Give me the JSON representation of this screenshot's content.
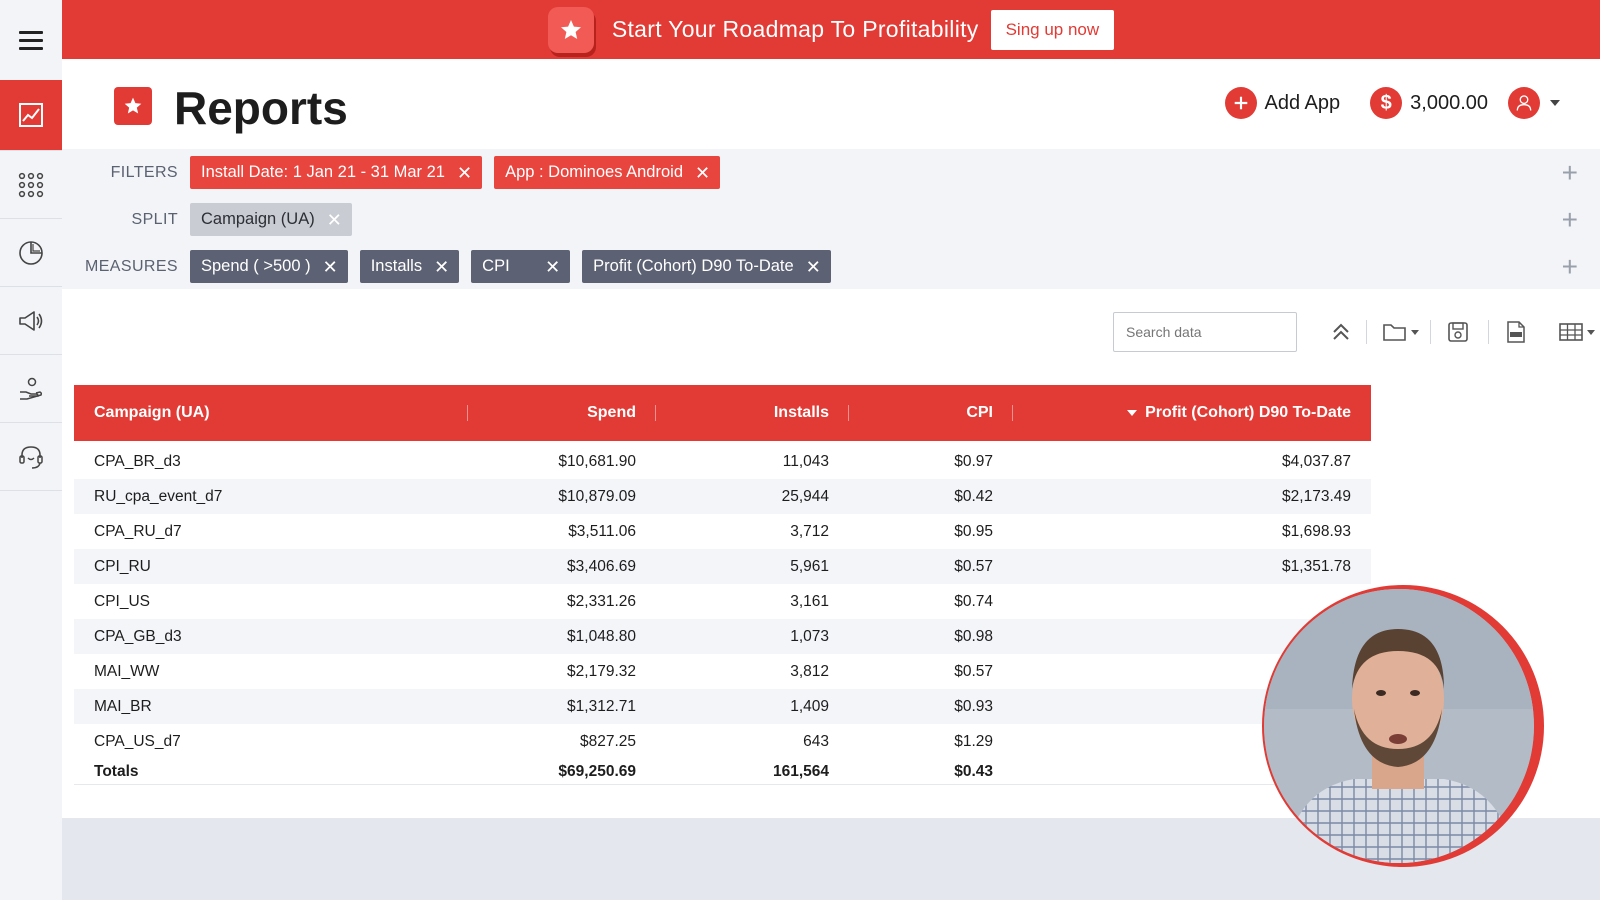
{
  "banner": {
    "title": "Start Your Roadmap To Profitability",
    "cta": "Sing up now"
  },
  "header": {
    "title": "Reports",
    "add_app": "Add App",
    "balance": "3,000.00"
  },
  "filters": {
    "labels": {
      "filters": "FILTERS",
      "split": "SPLIT",
      "measures": "MEASURES"
    },
    "filter_chips": [
      "Install Date: 1 Jan 21 - 31 Mar 21",
      "App : Dominoes Android"
    ],
    "split_chips": [
      "Campaign (UA)"
    ],
    "measure_chips": [
      "Spend ( >500 )",
      "Installs",
      "CPI",
      "Profit (Cohort) D90 To-Date"
    ]
  },
  "toolbar": {
    "search_placeholder": "Search data"
  },
  "table": {
    "columns": [
      "Campaign (UA)",
      "Spend",
      "Installs",
      "CPI",
      "Profit (Cohort) D90 To-Date"
    ],
    "rows": [
      [
        "CPA_BR_d3",
        "$10,681.90",
        "11,043",
        "$0.97",
        "$4,037.87"
      ],
      [
        "RU_cpa_event_d7",
        "$10,879.09",
        "25,944",
        "$0.42",
        "$2,173.49"
      ],
      [
        "CPA_RU_d7",
        "$3,511.06",
        "3,712",
        "$0.95",
        "$1,698.93"
      ],
      [
        "CPI_RU",
        "$3,406.69",
        "5,961",
        "$0.57",
        "$1,351.78"
      ],
      [
        "CPI_US",
        "$2,331.26",
        "3,161",
        "$0.74",
        ""
      ],
      [
        "CPA_GB_d3",
        "$1,048.80",
        "1,073",
        "$0.98",
        ""
      ],
      [
        "MAI_WW",
        "$2,179.32",
        "3,812",
        "$0.57",
        ""
      ],
      [
        "MAI_BR",
        "$1,312.71",
        "1,409",
        "$0.93",
        ""
      ],
      [
        "CPA_US_d7",
        "$827.25",
        "643",
        "$1.29",
        ""
      ]
    ],
    "totals": [
      "Totals",
      "$69,250.69",
      "161,564",
      "$0.43",
      ""
    ]
  },
  "icons": {
    "sidebar": [
      "chart-line-icon",
      "apps-grid-icon",
      "pie-chart-icon",
      "megaphone-icon",
      "hand-coins-icon",
      "support-headset-icon"
    ],
    "toolbar": [
      "collapse-up-icon",
      "folder-icon",
      "save-icon",
      "csv-icon",
      "table-view-icon"
    ]
  },
  "colors": {
    "accent": "#e23a34",
    "chip_gray": "#5c6273",
    "chip_light": "#c9ccd3"
  }
}
